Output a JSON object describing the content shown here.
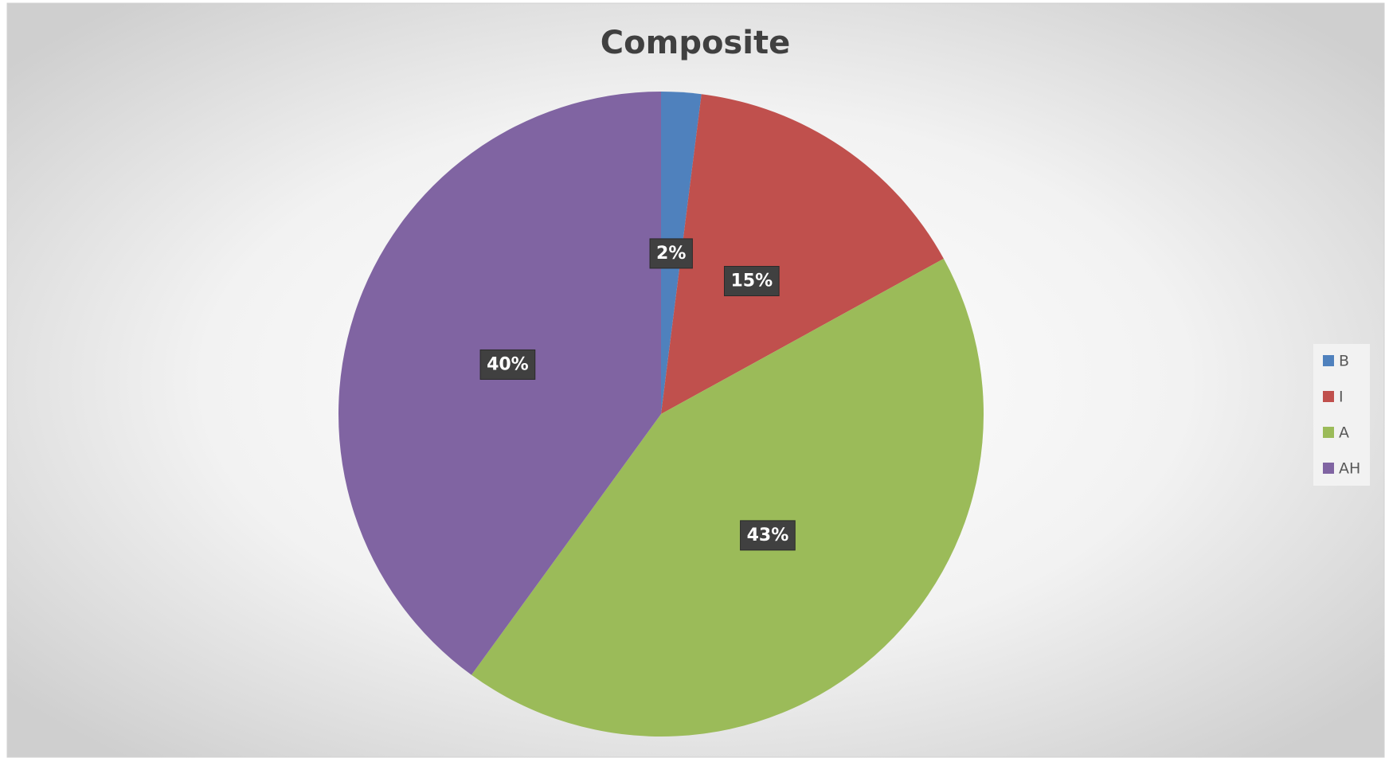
{
  "chart_data": {
    "type": "pie",
    "title": "Composite",
    "categories": [
      "B",
      "I",
      "A",
      "AH"
    ],
    "values": [
      2,
      15,
      43,
      40
    ],
    "value_labels": [
      "2%",
      "15%",
      "43%",
      "40%"
    ],
    "colors": [
      "#4f81bd",
      "#c0504d",
      "#9bbb59",
      "#8064a2"
    ],
    "legend": "right"
  }
}
